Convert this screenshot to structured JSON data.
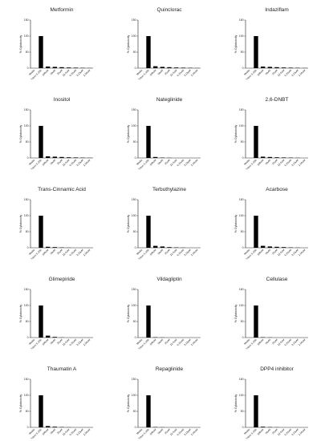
{
  "figure": {
    "categories": [
      "Media",
      "Triton X-100",
      "100uM",
      "50uM",
      "25uM",
      "12.5uM",
      "6.25uM",
      "3.13uM",
      "1.56uM"
    ],
    "ylabel": "% Cytotoxicity",
    "yticks": [
      "0",
      "50",
      "100",
      "150"
    ]
  },
  "chart_data": [
    {
      "type": "bar",
      "title": "Metformin",
      "ylim": [
        0,
        150
      ],
      "values": [
        0,
        100,
        5,
        4,
        3,
        2,
        1.5,
        1,
        0.5
      ]
    },
    {
      "type": "bar",
      "title": "Quinclorac",
      "ylim": [
        0,
        150
      ],
      "values": [
        0,
        100,
        6,
        4,
        3,
        2,
        1.5,
        1,
        0.5
      ]
    },
    {
      "type": "bar",
      "title": "Indaziflam",
      "ylim": [
        0,
        150
      ],
      "values": [
        0,
        100,
        5,
        4,
        3,
        2,
        1.5,
        1,
        0.5
      ]
    },
    {
      "type": "bar",
      "title": "Inositol",
      "ylim": [
        0,
        150
      ],
      "values": [
        0,
        100,
        5,
        4,
        3,
        2,
        1.5,
        1,
        0.5
      ]
    },
    {
      "type": "bar",
      "title": "Nateglinide",
      "ylim": [
        0,
        150
      ],
      "values": [
        0,
        100,
        3,
        1,
        0.5,
        0,
        0,
        0,
        0
      ]
    },
    {
      "type": "bar",
      "title": "2,6-DNBT",
      "ylim": [
        0,
        150
      ],
      "values": [
        0,
        100,
        4,
        3,
        2,
        1.5,
        1,
        0.5,
        0
      ]
    },
    {
      "type": "bar",
      "title": "Trans-Cinnamic Acid",
      "ylim": [
        0,
        150
      ],
      "values": [
        0,
        100,
        3,
        2,
        1,
        0.5,
        0,
        0,
        0
      ]
    },
    {
      "type": "bar",
      "title": "Terbuthylazine",
      "ylim": [
        0,
        150
      ],
      "values": [
        0,
        100,
        6,
        4,
        2,
        1,
        0.5,
        0,
        0
      ]
    },
    {
      "type": "bar",
      "title": "Acarbose",
      "ylim": [
        0,
        150
      ],
      "values": [
        0,
        100,
        6,
        4,
        3,
        2,
        1,
        0.5,
        0
      ]
    },
    {
      "type": "bar",
      "title": "Glimepiride",
      "ylim": [
        0,
        150
      ],
      "values": [
        0,
        100,
        6,
        2,
        0.5,
        0,
        0,
        0,
        0
      ]
    },
    {
      "type": "bar",
      "title": "Vildagliptin",
      "ylim": [
        0,
        150
      ],
      "values": [
        0,
        100,
        1,
        0.5,
        0,
        0,
        0,
        0,
        0
      ]
    },
    {
      "type": "bar",
      "title": "Cellulase",
      "ylim": [
        0,
        150
      ],
      "values": [
        0,
        100,
        1,
        0.5,
        0,
        0,
        0,
        0,
        0
      ]
    },
    {
      "type": "bar",
      "title": "Thaumatin A",
      "ylim": [
        0,
        150
      ],
      "values": [
        0,
        100,
        4,
        2,
        1,
        0.5,
        0,
        0,
        0
      ]
    },
    {
      "type": "bar",
      "title": "Repaglinide",
      "ylim": [
        0,
        150
      ],
      "values": [
        0,
        100,
        1,
        0.5,
        0,
        0,
        0,
        0,
        0
      ]
    },
    {
      "type": "bar",
      "title": "DPP4 inhibitor",
      "ylim": [
        0,
        150
      ],
      "values": [
        0,
        100,
        2,
        1,
        0.5,
        0,
        0,
        0,
        0
      ]
    }
  ]
}
